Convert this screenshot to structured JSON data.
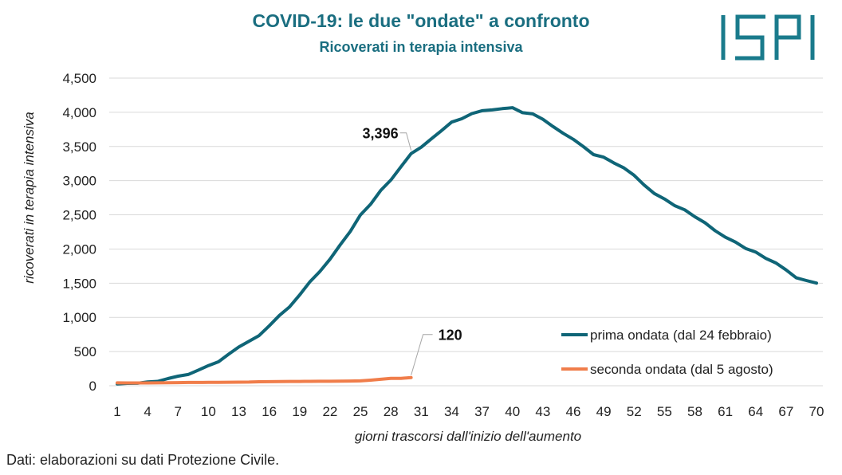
{
  "title": "COVID-19: le due \"ondate\" a confronto",
  "subtitle": "Ricoverati in terapia intensiva",
  "logo_text": "ISPI",
  "footer": "Dati: elaborazioni su dati Protezione Civile.",
  "colors": {
    "title": "#1a6e80",
    "prima": "#0f6577",
    "seconda": "#f07d4a",
    "grid": "#d9d9d9",
    "logo": "#1a7b8c"
  },
  "chart_data": {
    "type": "line",
    "xlabel": "giorni trascorsi dall'inizio dell'aumento",
    "ylabel": "ricoverati in terapia intensiva",
    "xlim": [
      1,
      70
    ],
    "ylim": [
      0,
      4500
    ],
    "grid": true,
    "legend_position": "bottom-right",
    "x_ticks": [
      "1",
      "4",
      "7",
      "10",
      "13",
      "16",
      "19",
      "22",
      "25",
      "28",
      "31",
      "34",
      "37",
      "40",
      "43",
      "46",
      "49",
      "52",
      "55",
      "58",
      "61",
      "64",
      "67",
      "70"
    ],
    "y_ticks": [
      "0",
      "500",
      "1,000",
      "1,500",
      "2,000",
      "2,500",
      "3,000",
      "3,500",
      "4,000",
      "4,500"
    ],
    "series": [
      {
        "name": "prima ondata (dal 24 febbraio)",
        "x": [
          1,
          2,
          3,
          4,
          5,
          6,
          7,
          8,
          9,
          10,
          11,
          12,
          13,
          14,
          15,
          16,
          17,
          18,
          19,
          20,
          21,
          22,
          23,
          24,
          25,
          26,
          27,
          28,
          29,
          30,
          31,
          32,
          33,
          34,
          35,
          36,
          37,
          38,
          39,
          40,
          41,
          42,
          43,
          44,
          45,
          46,
          47,
          48,
          49,
          50,
          51,
          52,
          53,
          54,
          55,
          56,
          57,
          58,
          59,
          60,
          61,
          62,
          63,
          64,
          65,
          66,
          67,
          68,
          69,
          70
        ],
        "values": [
          26,
          35,
          36,
          56,
          64,
          105,
          140,
          164,
          229,
          295,
          351,
          462,
          567,
          650,
          733,
          877,
          1028,
          1153,
          1328,
          1518,
          1672,
          1851,
          2060,
          2257,
          2498,
          2655,
          2857,
          3009,
          3204,
          3396,
          3489,
          3612,
          3732,
          3856,
          3906,
          3981,
          4023,
          4035,
          4053,
          4068,
          3994,
          3977,
          3898,
          3792,
          3693,
          3605,
          3497,
          3381,
          3343,
          3260,
          3186,
          3079,
          2936,
          2812,
          2733,
          2635,
          2573,
          2471,
          2384,
          2267,
          2173,
          2102,
          2009,
          1956,
          1863,
          1795,
          1694,
          1578,
          1539,
          1501
        ]
      },
      {
        "name": "seconda ondata (dal 5 agosto)",
        "x": [
          1,
          2,
          3,
          4,
          5,
          6,
          7,
          8,
          9,
          10,
          11,
          12,
          13,
          14,
          15,
          16,
          17,
          18,
          19,
          20,
          21,
          22,
          23,
          24,
          25,
          26,
          27,
          28,
          29,
          30
        ],
        "values": [
          42,
          41,
          41,
          41,
          42,
          43,
          45,
          48,
          48,
          49,
          49,
          51,
          52,
          54,
          58,
          60,
          62,
          63,
          63,
          64,
          65,
          65,
          66,
          69,
          71,
          82,
          94,
          107,
          107,
          120
        ]
      }
    ],
    "annotations": [
      {
        "text": "3,396",
        "series": 0,
        "x": 30,
        "y": 3396
      },
      {
        "text": "120",
        "series": 1,
        "x": 30,
        "y": 120
      }
    ]
  }
}
